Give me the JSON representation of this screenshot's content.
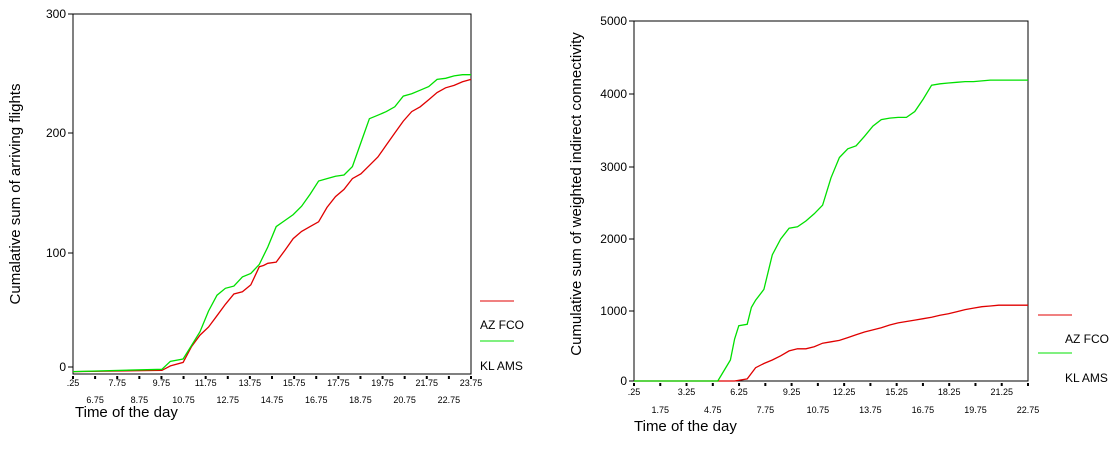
{
  "colors": {
    "az": "#e00000",
    "kl": "#00e000",
    "axis": "#000000"
  },
  "chart_data": [
    {
      "type": "line",
      "ylabel": "Cumalative sum of arriving flights",
      "xlabel": "Time of the day",
      "ylim": [
        0,
        300
      ],
      "yticks": [
        "0",
        "100",
        "200",
        "300"
      ],
      "xlim": [
        0.25,
        23.75
      ],
      "xticks_row1": [
        ".25",
        "7.75",
        "9.75",
        "11.75",
        "13.75",
        "15.75",
        "17.75",
        "19.75",
        "21.75",
        "23.75"
      ],
      "xticks_row2": [
        "6.75",
        "8.75",
        "10.75",
        "12.75",
        "14.75",
        "16.75",
        "18.75",
        "20.75",
        "22.75"
      ],
      "legend": [
        "AZ FCO",
        "KL AMS"
      ],
      "series": [
        {
          "name": "AZ FCO",
          "x": [
            0.25,
            5.5,
            6.0,
            6.75,
            7.25,
            7.75,
            8.25,
            8.75,
            9.25,
            9.75,
            10.25,
            10.75,
            11.25,
            11.5,
            11.75,
            12.25,
            12.75,
            13.25,
            13.75,
            14.25,
            14.75,
            15.25,
            15.75,
            16.25,
            16.75,
            17.25,
            17.75,
            18.25,
            18.75,
            19.25,
            19.75,
            20.25,
            20.75,
            21.25,
            21.75,
            22.25,
            22.75,
            23.25,
            23.75
          ],
          "values": [
            -4,
            -3,
            1,
            4,
            18,
            28,
            35,
            45,
            55,
            64,
            66,
            72,
            88,
            89,
            91,
            92,
            102,
            112,
            118,
            122,
            126,
            138,
            147,
            153,
            162,
            166,
            173,
            180,
            190,
            200,
            210,
            218,
            222,
            228,
            234,
            238,
            240,
            243,
            245
          ]
        },
        {
          "name": "KL AMS",
          "x": [
            0.25,
            5.5,
            6.0,
            6.75,
            7.25,
            7.75,
            8.25,
            8.75,
            9.25,
            9.75,
            10.25,
            10.75,
            11.25,
            11.75,
            12.25,
            12.75,
            13.25,
            13.75,
            14.25,
            14.75,
            15.25,
            15.75,
            16.25,
            16.75,
            17.25,
            17.75,
            18.25,
            18.75,
            19.25,
            19.75,
            20.25,
            20.75,
            21.25,
            21.75,
            22.25,
            22.75,
            23.25,
            23.75
          ],
          "values": [
            -4,
            -2,
            5,
            7,
            19,
            31,
            49,
            63,
            69,
            71,
            79,
            82,
            90,
            105,
            122,
            127,
            132,
            139,
            149,
            160,
            162,
            164,
            165,
            172,
            192,
            212,
            215,
            218,
            222,
            231,
            233,
            236,
            239,
            245,
            246,
            248,
            249,
            249
          ]
        }
      ]
    },
    {
      "type": "line",
      "ylabel": "Cumulative sum of weighted indirect connectivity",
      "xlabel": "Time of the day",
      "ylim": [
        0,
        5000
      ],
      "yticks": [
        "0",
        "1000",
        "2000",
        "3000",
        "4000",
        "5000"
      ],
      "xlim": [
        0.25,
        23.75
      ],
      "xticks_row1": [
        ".25",
        "3.25",
        "6.25",
        "9.25",
        "12.25",
        "15.25",
        "18.25",
        "21.25"
      ],
      "xticks_row2": [
        "1.75",
        "4.75",
        "7.75",
        "10.75",
        "13.75",
        "16.75",
        "19.75",
        "22.75"
      ],
      "legend": [
        "AZ FCO",
        "KL AMS"
      ],
      "series": [
        {
          "name": "AZ FCO",
          "x": [
            0.25,
            6.25,
            7.0,
            7.5,
            8.0,
            8.5,
            9.0,
            9.5,
            10.0,
            10.5,
            11.0,
            11.5,
            12.0,
            12.5,
            13.0,
            13.5,
            14.0,
            14.5,
            15.0,
            15.5,
            16.0,
            16.5,
            17.0,
            17.5,
            18.0,
            18.5,
            19.0,
            19.5,
            20.0,
            20.5,
            21.0,
            21.5,
            22.0,
            22.5,
            23.0,
            23.75
          ],
          "values": [
            0,
            0,
            30,
            190,
            250,
            300,
            360,
            430,
            460,
            460,
            490,
            540,
            560,
            580,
            620,
            660,
            700,
            730,
            760,
            800,
            830,
            850,
            870,
            890,
            910,
            940,
            960,
            990,
            1020,
            1040,
            1060,
            1070,
            1080,
            1080,
            1080,
            1080
          ]
        },
        {
          "name": "KL AMS",
          "x": [
            0.25,
            5.25,
            5.5,
            6.0,
            6.25,
            6.5,
            7.0,
            7.25,
            7.5,
            8.0,
            8.5,
            9.0,
            9.5,
            10.0,
            10.5,
            11.0,
            11.5,
            12.0,
            12.5,
            13.0,
            13.5,
            14.0,
            14.5,
            15.0,
            15.5,
            16.0,
            16.5,
            17.0,
            17.5,
            18.0,
            18.5,
            19.0,
            19.5,
            20.0,
            20.5,
            21.0,
            21.5,
            22.0,
            22.5,
            23.0,
            23.75
          ],
          "values": [
            0,
            0,
            100,
            300,
            600,
            790,
            810,
            1050,
            1150,
            1300,
            1780,
            2000,
            2150,
            2170,
            2250,
            2350,
            2470,
            2850,
            3130,
            3250,
            3290,
            3420,
            3560,
            3650,
            3670,
            3680,
            3680,
            3760,
            3930,
            4120,
            4140,
            4150,
            4160,
            4170,
            4170,
            4180,
            4190,
            4190,
            4190,
            4190,
            4190
          ]
        }
      ]
    }
  ]
}
